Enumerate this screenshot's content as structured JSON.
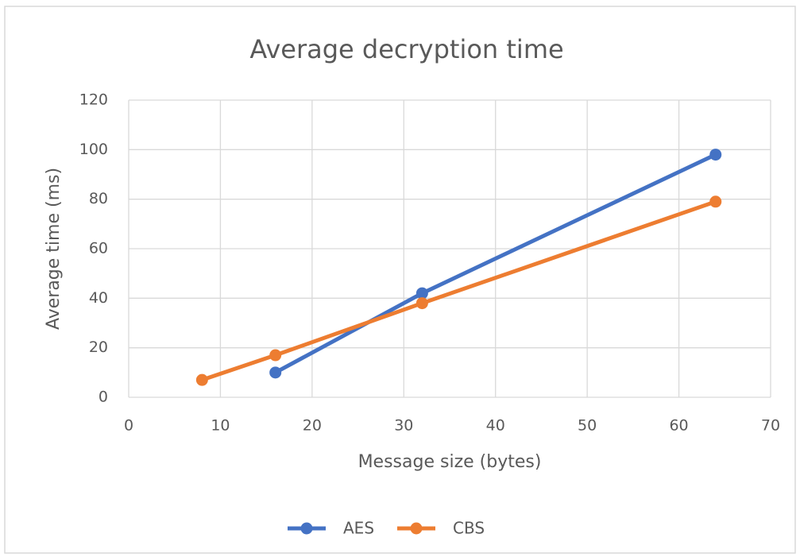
{
  "chart_data": {
    "type": "line",
    "title": "Average decryption time",
    "x_label": "Message size (bytes)",
    "y_label": "Average time (ms)",
    "xlim": [
      0,
      70
    ],
    "xticks": [
      0,
      10,
      20,
      30,
      40,
      50,
      60,
      70
    ],
    "ylim": [
      0,
      120
    ],
    "yticks": [
      0,
      20,
      40,
      60,
      80,
      100,
      120
    ],
    "grid": true,
    "legend": "bottom",
    "series": [
      {
        "name": "AES",
        "color": "#4472c4",
        "x": [
          16,
          32,
          64
        ],
        "values": [
          10,
          42,
          98
        ]
      },
      {
        "name": "CBS",
        "color": "#ed7d31",
        "x": [
          8,
          16,
          32,
          64
        ],
        "values": [
          7,
          17,
          38,
          79
        ]
      }
    ]
  }
}
